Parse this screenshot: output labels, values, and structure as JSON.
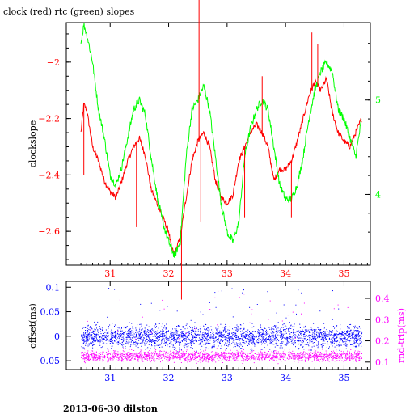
{
  "header": {
    "title": "clock (red) rtc (green) slopes"
  },
  "footer": {
    "caption": "2013-06-30 dilston"
  },
  "colors": {
    "red": "#ff0000",
    "green": "#00ff00",
    "blue": "#0000ff",
    "magenta": "#ff00ff",
    "black": "#000000"
  },
  "chart_data": [
    {
      "type": "line",
      "title": "clock (red) rtc (green) slopes",
      "xlabel": "",
      "ylabel": "clockslope",
      "y2label": "",
      "xlim": [
        30.25,
        35.45
      ],
      "ylim": [
        -2.72,
        -1.86
      ],
      "y2lim": [
        3.25,
        5.82
      ],
      "xticks": [
        31,
        32,
        33,
        34,
        35
      ],
      "yticks": [
        -2.6,
        -2.4,
        -2.2,
        -2
      ],
      "yticklabels": [
        "−2.6",
        "−2.4",
        "−2.2",
        "−2"
      ],
      "y2ticks": [
        4,
        5
      ],
      "y2ticklabels": [
        "4",
        "5"
      ],
      "series": [
        {
          "color": "red",
          "axis": "left",
          "x": [
            30.5,
            30.55,
            30.6,
            30.7,
            30.8,
            30.9,
            31.0,
            31.1,
            31.2,
            31.3,
            31.4,
            31.5,
            31.6,
            31.7,
            31.8,
            31.9,
            32.0,
            32.05,
            32.1,
            32.2,
            32.3,
            32.4,
            32.5,
            32.6,
            32.7,
            32.8,
            32.9,
            33.0,
            33.1,
            33.2,
            33.3,
            33.4,
            33.5,
            33.6,
            33.7,
            33.8,
            33.9,
            34.0,
            34.1,
            34.2,
            34.3,
            34.4,
            34.5,
            34.6,
            34.7,
            34.8,
            34.9,
            35.0,
            35.1,
            35.2,
            35.3
          ],
          "y": [
            -2.25,
            -2.15,
            -2.17,
            -2.3,
            -2.35,
            -2.42,
            -2.46,
            -2.48,
            -2.42,
            -2.35,
            -2.3,
            -2.27,
            -2.33,
            -2.45,
            -2.5,
            -2.55,
            -2.6,
            -2.66,
            -2.68,
            -2.62,
            -2.48,
            -2.35,
            -2.28,
            -2.25,
            -2.3,
            -2.42,
            -2.48,
            -2.5,
            -2.47,
            -2.35,
            -2.3,
            -2.25,
            -2.22,
            -2.25,
            -2.3,
            -2.42,
            -2.38,
            -2.38,
            -2.35,
            -2.28,
            -2.2,
            -2.12,
            -2.07,
            -2.1,
            -2.06,
            -2.18,
            -2.25,
            -2.28,
            -2.3,
            -2.25,
            -2.2
          ]
        },
        {
          "color": "green",
          "axis": "right",
          "x": [
            30.5,
            30.55,
            30.6,
            30.7,
            30.8,
            30.9,
            31.0,
            31.1,
            31.2,
            31.3,
            31.4,
            31.5,
            31.6,
            31.7,
            31.8,
            31.9,
            32.0,
            32.1,
            32.2,
            32.3,
            32.4,
            32.5,
            32.6,
            32.7,
            32.8,
            32.9,
            33.0,
            33.1,
            33.2,
            33.3,
            33.4,
            33.5,
            33.6,
            33.7,
            33.8,
            33.9,
            34.0,
            34.1,
            34.2,
            34.3,
            34.4,
            34.5,
            34.6,
            34.7,
            34.8,
            34.9,
            35.0,
            35.1,
            35.2,
            35.3
          ],
          "y": [
            5.6,
            5.8,
            5.7,
            5.4,
            4.9,
            4.6,
            4.2,
            4.1,
            4.3,
            4.6,
            4.9,
            5.0,
            4.85,
            4.4,
            4.0,
            3.7,
            3.5,
            3.35,
            3.5,
            4.4,
            4.9,
            5.0,
            5.15,
            4.9,
            4.4,
            3.9,
            3.6,
            3.5,
            3.7,
            4.4,
            4.7,
            4.9,
            5.0,
            4.9,
            4.5,
            4.1,
            3.95,
            3.95,
            4.1,
            4.4,
            4.8,
            5.1,
            5.3,
            5.4,
            5.3,
            4.9,
            4.8,
            4.6,
            4.4,
            4.8
          ]
        }
      ]
    },
    {
      "type": "scatter",
      "xlabel": "",
      "ylabel": "offset(ms)",
      "y2label": "rnd-trip(ms)",
      "xlim": [
        30.25,
        35.45
      ],
      "ylim": [
        -0.068,
        0.112
      ],
      "y2lim": [
        0.065,
        0.48
      ],
      "xticks": [
        31,
        32,
        33,
        34,
        35
      ],
      "yticks": [
        -0.05,
        0,
        0.05,
        0.1
      ],
      "yticklabels": [
        "−0.05",
        "0",
        "0.05",
        "0.1"
      ],
      "y2ticks": [
        0.1,
        0.2,
        0.3,
        0.4
      ],
      "y2ticklabels": [
        "0.1",
        "0.2",
        "0.3",
        "0.4"
      ],
      "series": [
        {
          "color": "blue",
          "axis": "left",
          "x_range": [
            30.5,
            35.3
          ],
          "y_center": 0.0,
          "y_spread": 0.022
        },
        {
          "color": "magenta",
          "axis": "right",
          "x_range": [
            30.5,
            35.3
          ],
          "y_center": 0.13,
          "y_spread": 0.025
        }
      ]
    }
  ]
}
